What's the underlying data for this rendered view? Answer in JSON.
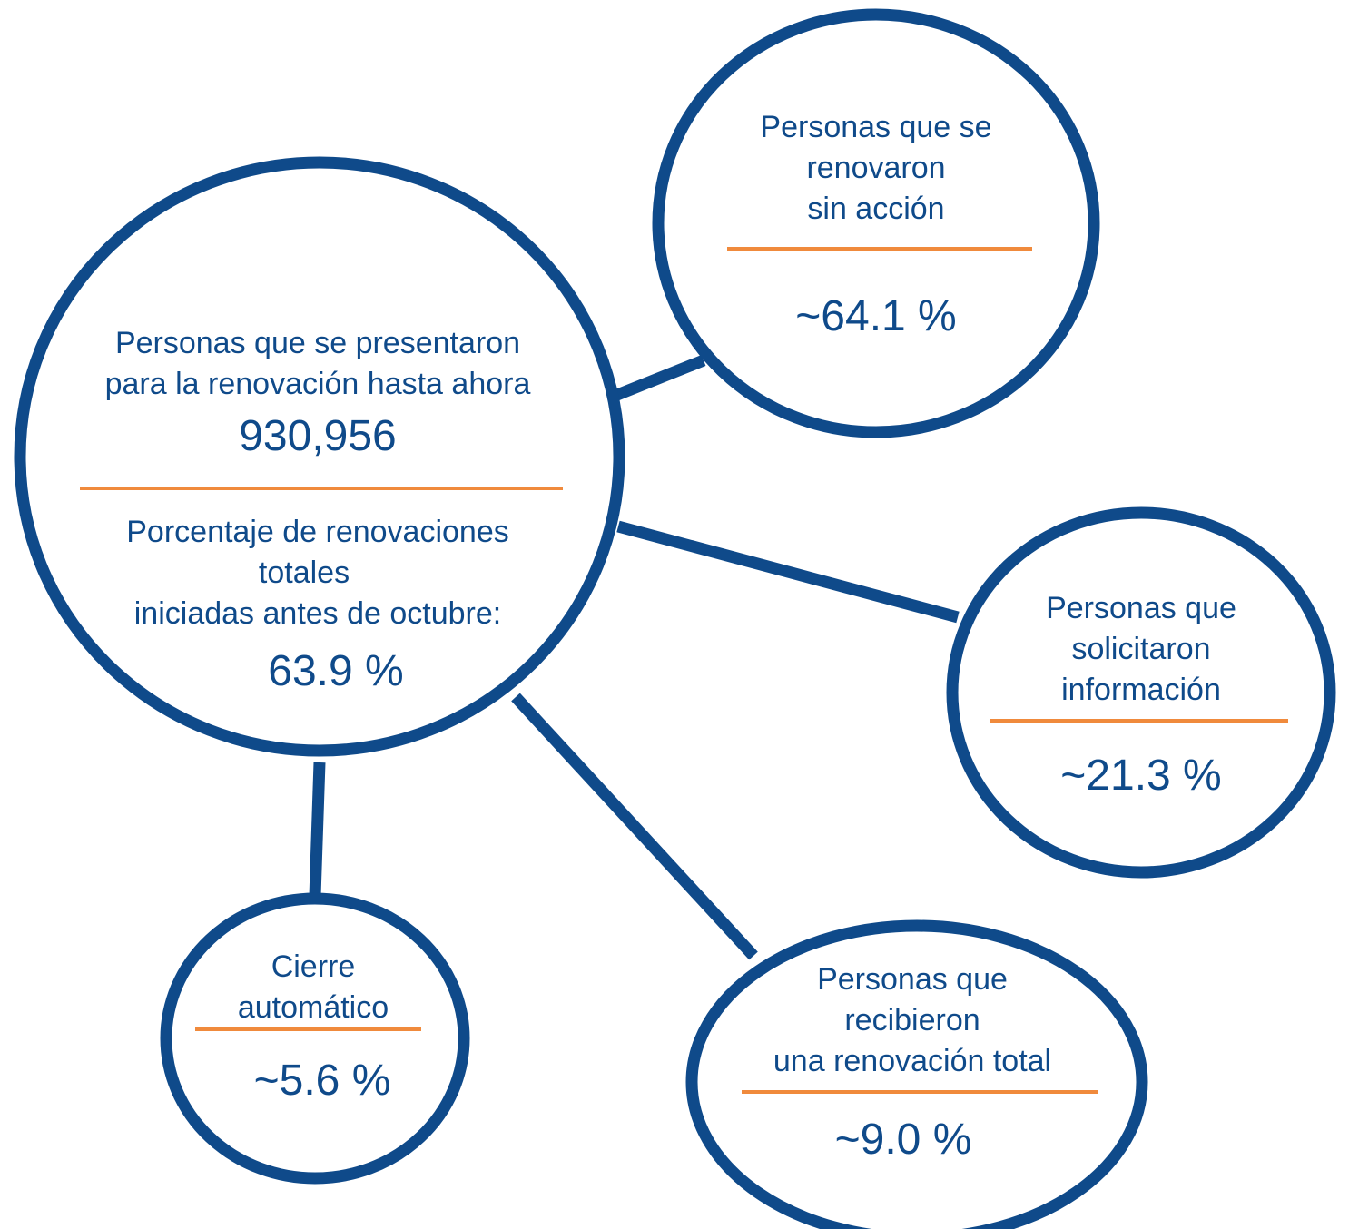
{
  "colors": {
    "circle": "#0f4a8a",
    "divider": "#f08a3c",
    "text": "#0f4a8a"
  },
  "center": {
    "line1": "Personas que se presentaron",
    "line2": "para la renovación hasta ahora",
    "count": "930,956",
    "pct_line1": "Porcentaje de renovaciones",
    "pct_line2": "totales",
    "pct_line3": "iniciadas antes de octubre:",
    "pct_value": "63.9 %"
  },
  "sin_accion": {
    "line1": "Personas que se",
    "line2": "renovaron",
    "line3": "sin acción",
    "value": "~64.1 %"
  },
  "informacion": {
    "line1": "Personas que",
    "line2": "solicitaron",
    "line3": "información",
    "value": "~21.3 %"
  },
  "renovacion_total": {
    "line1": "Personas que",
    "line2": "recibieron",
    "line3": "una renovación total",
    "value": "~9.0 %"
  },
  "cierre": {
    "line1": "Cierre",
    "line2": "automático",
    "value": "~5.6 %"
  }
}
